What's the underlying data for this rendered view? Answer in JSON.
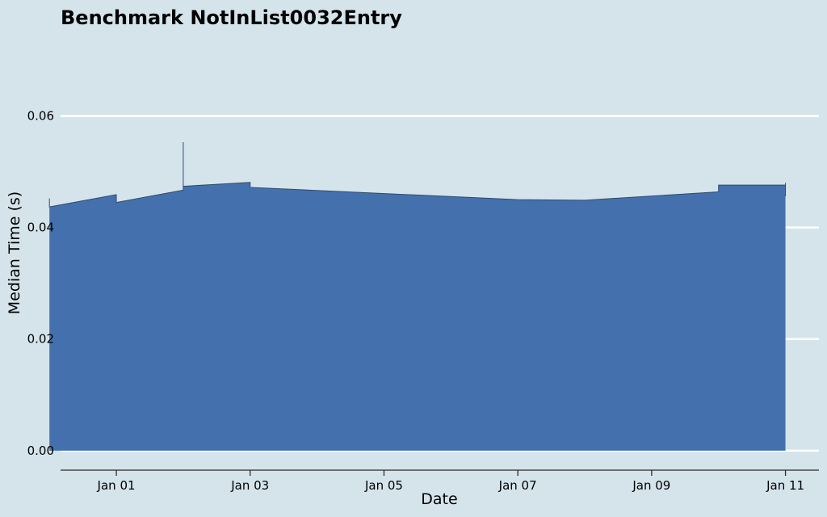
{
  "chart_data": {
    "type": "area",
    "title": "Benchmark NotInList0032Entry",
    "xlabel": "Date",
    "ylabel": "Median Time (s)",
    "xlim": [
      "2022-12-31T04:00",
      "2023-01-11T12:00"
    ],
    "ylim": [
      -0.0035,
      0.075
    ],
    "yticks": [
      0.0,
      0.02,
      0.04,
      0.06
    ],
    "ytick_labels": [
      "0.00",
      "0.02",
      "0.04",
      "0.06"
    ],
    "xticks": [
      "2023-01-01",
      "2023-01-03",
      "2023-01-05",
      "2023-01-07",
      "2023-01-09",
      "2023-01-11"
    ],
    "xtick_labels": [
      "Jan 01",
      "Jan 03",
      "Jan 05",
      "Jan 07",
      "Jan 09",
      "Jan 11"
    ],
    "grid": "horizontal",
    "fill_color": "#4471ad",
    "edge_color": "#2f4b6e",
    "series": [
      {
        "x": [
          "2022-12-31",
          "2022-12-31",
          "2022-12-31",
          "2023-01-01",
          "2023-01-01",
          "2023-01-02",
          "2023-01-02",
          "2023-01-02",
          "2023-01-03",
          "2023-01-03",
          "2023-01-07",
          "2023-01-08",
          "2023-01-10",
          "2023-01-10",
          "2023-01-11",
          "2023-01-11",
          "2023-01-11"
        ],
        "y": [
          0.0452,
          0.0437,
          0.0437,
          0.0459,
          0.0445,
          0.0467,
          0.0553,
          0.0474,
          0.0481,
          0.0472,
          0.045,
          0.0449,
          0.0464,
          0.0476,
          0.0476,
          0.048,
          0.0456
        ]
      }
    ]
  }
}
